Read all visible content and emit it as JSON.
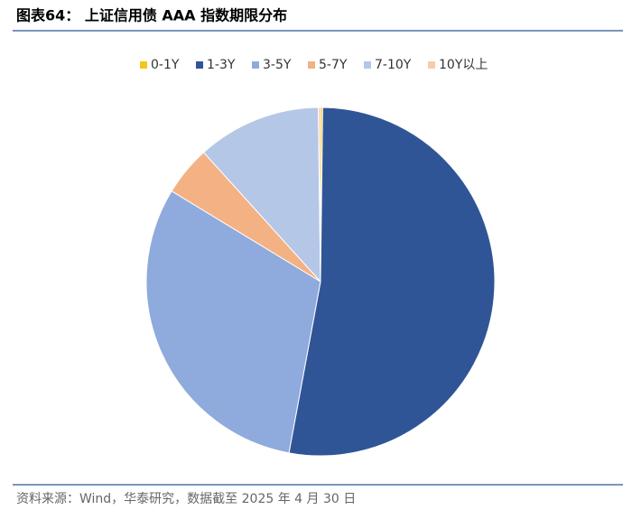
{
  "chart_data": {
    "type": "pie",
    "title": "图表64： 上证信用债 AAA 指数期限分布",
    "source": "资料来源：Wind，华泰研究，数据截至 2025 年 4 月 30 日",
    "categories": [
      "0-1Y",
      "1-3Y",
      "3-5Y",
      "5-7Y",
      "7-10Y",
      "10Y以上"
    ],
    "values": [
      0.2,
      52.7,
      30.8,
      4.6,
      11.5,
      0.2
    ],
    "colors": [
      "#f5c518",
      "#2f5597",
      "#8faadc",
      "#f4b183",
      "#b4c7e7",
      "#f8cbad"
    ],
    "legend": "top"
  }
}
